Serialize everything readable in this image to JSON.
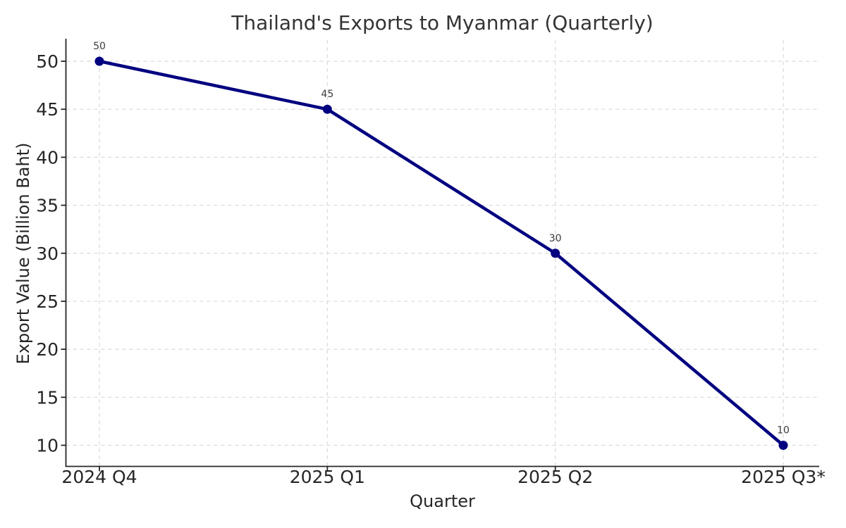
{
  "chart_data": {
    "type": "line",
    "title": "Thailand's Exports to Myanmar (Quarterly)",
    "xlabel": "Quarter",
    "ylabel": "Export Value (Billion Baht)",
    "categories": [
      "2024 Q4",
      "2025 Q1",
      "2025 Q2",
      "2025 Q3*"
    ],
    "series": [
      {
        "name": "Export Value (Billion Baht)",
        "values": [
          50,
          45,
          30,
          10
        ]
      }
    ],
    "point_labels": [
      "50",
      "45",
      "30",
      "10"
    ],
    "yticks": [
      10,
      15,
      20,
      25,
      30,
      35,
      40,
      45,
      50
    ],
    "ylim": [
      7.8,
      52.2
    ],
    "grid": "dashed-both-axes",
    "legend": "none",
    "spines": [
      "left",
      "bottom"
    ],
    "colors": {
      "background": "#ffffff",
      "line": "#000080",
      "marker": "#000080",
      "grid": "#d9d9d9",
      "spine": "#262626",
      "tick_label": "#262626",
      "title": "#333333",
      "annotation": "#3a3a3a"
    }
  }
}
